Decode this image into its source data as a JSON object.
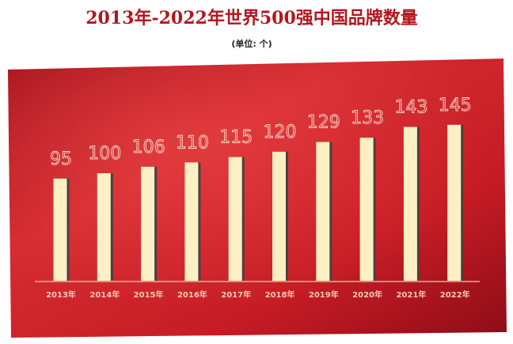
{
  "chart_data": {
    "type": "bar",
    "title": "2013年-2022年世界500强中国品牌数量",
    "subtitle": "(单位: 个)",
    "categories": [
      "2013年",
      "2014年",
      "2015年",
      "2016年",
      "2017年",
      "2018年",
      "2019年",
      "2020年",
      "2021年",
      "2022年"
    ],
    "values": [
      95,
      100,
      106,
      110,
      115,
      120,
      129,
      133,
      143,
      145
    ],
    "color": "#fcefc4"
  }
}
